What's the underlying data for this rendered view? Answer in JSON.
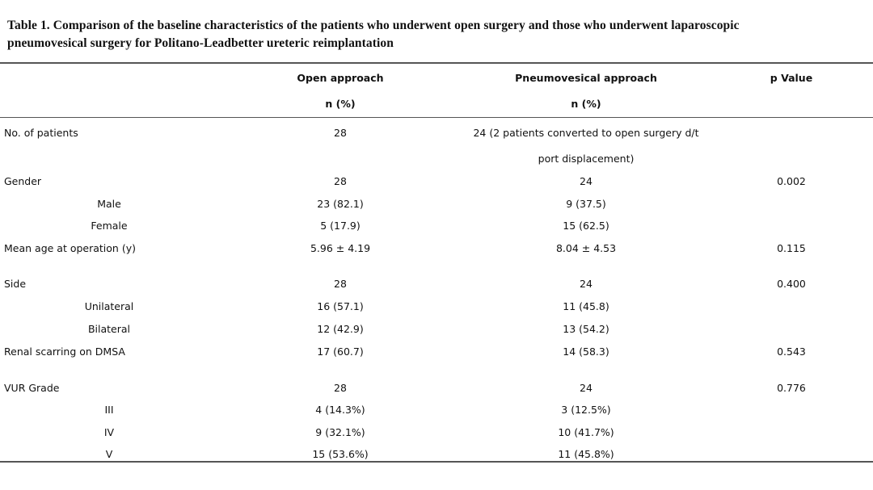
{
  "caption": {
    "line1": "Table 1. Comparison of the baseline characteristics of the patients who underwent open surgery and those who underwent laparoscopic",
    "line2": "pneumovesical surgery for Politano-Leadbetter ureteric reimplantation"
  },
  "header": {
    "open": "Open approach",
    "open_unit": "n (%)",
    "pneumo": "Pneumovesical approach",
    "pneumo_unit": "n (%)",
    "p": "p Value"
  },
  "rows": [
    {
      "label": "No. of patients",
      "open": "28",
      "pneumo": "24 (2 patients converted to open surgery d/t",
      "pneumo2": "port displacement)",
      "p": ""
    },
    {
      "label": "Gender",
      "open": "28",
      "pneumo": "24",
      "p": "0.002"
    },
    {
      "label": "Male",
      "open": "23 (82.1)",
      "pneumo": "9 (37.5)",
      "p": ""
    },
    {
      "label": "Female",
      "open": "5 (17.9)",
      "pneumo": "15 (62.5)",
      "p": ""
    },
    {
      "label": "Mean age at operation (y)",
      "open": "5.96 ± 4.19",
      "pneumo": "8.04 ± 4.53",
      "p": "0.115"
    },
    {
      "label": "Side",
      "open": "28",
      "pneumo": "24",
      "p": "0.400"
    },
    {
      "label": "Unilateral",
      "open": "16 (57.1)",
      "pneumo": "11 (45.8)",
      "p": ""
    },
    {
      "label": "Bilateral",
      "open": "12 (42.9)",
      "pneumo": "13 (54.2)",
      "p": ""
    },
    {
      "label": "Renal scarring on DMSA",
      "open": "17 (60.7)",
      "pneumo": "14 (58.3)",
      "p": "0.543"
    },
    {
      "label": "VUR Grade",
      "open": "28",
      "pneumo": "24",
      "p": "0.776"
    },
    {
      "label": "III",
      "open": "4 (14.3%)",
      "pneumo": "3 (12.5%)",
      "p": ""
    },
    {
      "label": "IV",
      "open": "9 (32.1%)",
      "pneumo": "10 (41.7%)",
      "p": ""
    },
    {
      "label": "V",
      "open": "15 (53.6%)",
      "pneumo": "11 (45.8%)",
      "p": ""
    }
  ]
}
